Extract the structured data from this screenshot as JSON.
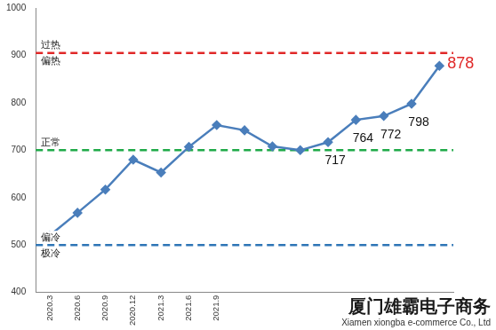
{
  "chart_data": {
    "type": "line",
    "categories": [
      "2020.3",
      "2020.6",
      "2020.9",
      "2020.12",
      "2021.3",
      "2021.6",
      "2021.9",
      null,
      null,
      null,
      null,
      null,
      null,
      null,
      null
    ],
    "values": [
      520,
      568,
      617,
      680,
      653,
      707,
      753,
      742,
      708,
      700,
      717,
      764,
      772,
      798,
      878
    ],
    "value_labels": [
      null,
      null,
      null,
      null,
      null,
      null,
      null,
      null,
      null,
      null,
      "717",
      "764",
      "772",
      "798",
      "878"
    ],
    "color": "#4a7ebb",
    "marker": "diamond",
    "ylim": [
      400,
      1000
    ],
    "yticks": [
      400,
      500,
      600,
      700,
      800,
      900,
      1000
    ],
    "grid": false,
    "reference_lines": [
      {
        "value": 905,
        "color": "#e02828",
        "line_style": "dashed",
        "label_above": "过热",
        "label_below": "偏热"
      },
      {
        "value": 700,
        "color": "#1faa48",
        "line_style": "dashed",
        "label_above": "正常"
      },
      {
        "value": 500,
        "color": "#2e75b6",
        "line_style": "dashed",
        "label_above": "偏冷",
        "label_below": "极冷"
      }
    ]
  },
  "watermark": {
    "title": "厦门雄霸电子商务",
    "subtitle": "Xiamen xiongba e-commerce Co., Ltd"
  }
}
